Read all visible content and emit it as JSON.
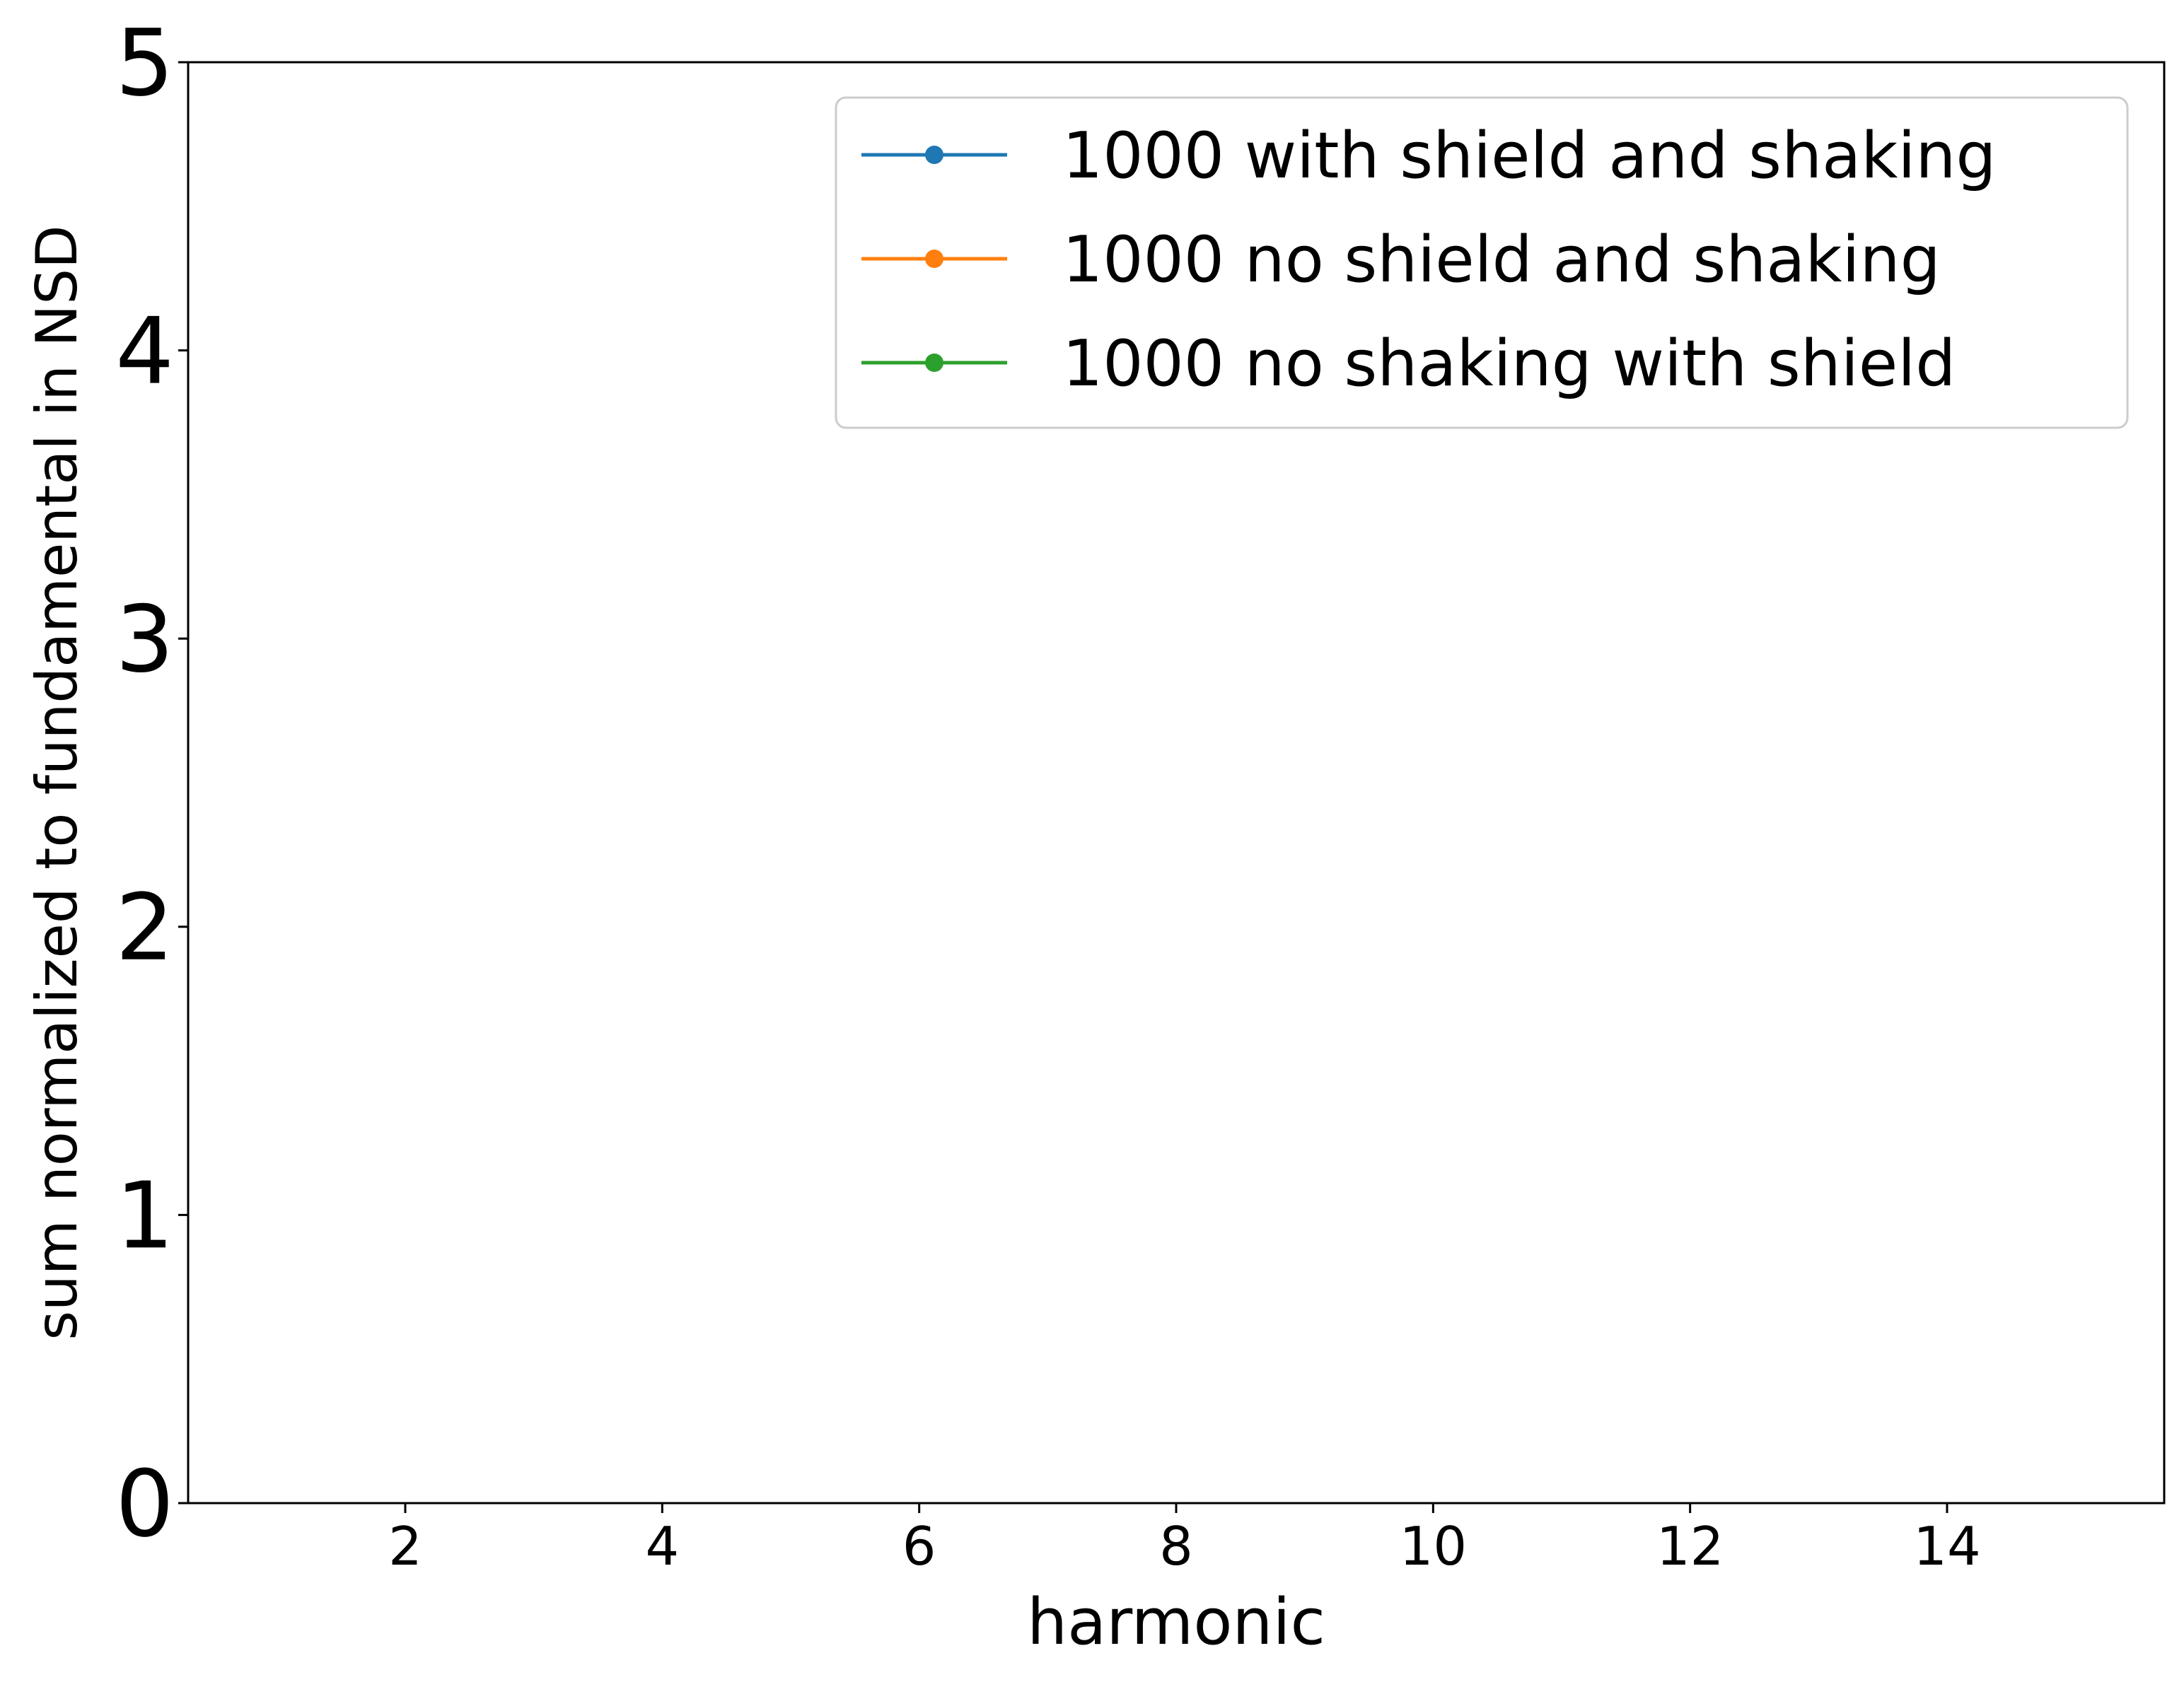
{
  "chart_data": {
    "type": "line",
    "title": "",
    "xlabel": "harmonic",
    "ylabel": "sum normalized to fundamental in NSD",
    "xlim": [
      0.31,
      15.69
    ],
    "ylim": [
      0,
      5
    ],
    "xticks": [
      2,
      4,
      6,
      8,
      10,
      12,
      14
    ],
    "yticks": [
      0,
      1,
      2,
      3,
      4,
      5
    ],
    "grid": false,
    "legend_position": "top-right",
    "series": [
      {
        "name": "1000 with shield and shaking",
        "color": "#1f77b4",
        "marker": "circle",
        "x": [],
        "y": []
      },
      {
        "name": "1000 no shield and shaking",
        "color": "#ff7f0e",
        "marker": "circle",
        "x": [],
        "y": []
      },
      {
        "name": "1000 no shaking with shield",
        "color": "#2ca02c",
        "marker": "circle",
        "x": [],
        "y": []
      }
    ]
  }
}
